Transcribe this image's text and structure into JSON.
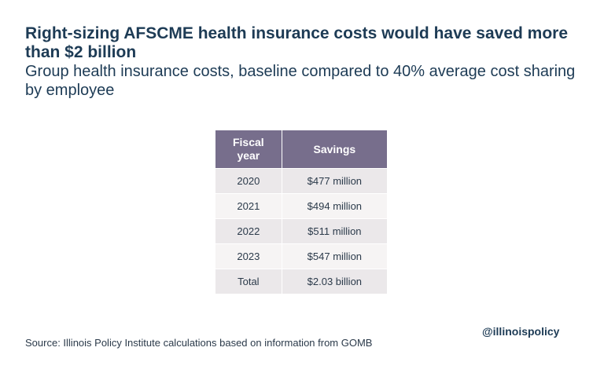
{
  "chart_data": {
    "type": "table",
    "title": "Right-sizing AFSCME health insurance costs would have saved more than $2 billion",
    "subtitle": "Group health insurance costs, baseline compared to 40% average cost sharing by employee",
    "columns": [
      "Fiscal year",
      "Savings"
    ],
    "rows": [
      {
        "year": "2020",
        "savings": "$477 million"
      },
      {
        "year": "2021",
        "savings": "$494 million"
      },
      {
        "year": "2022",
        "savings": "$511 million"
      },
      {
        "year": "2023",
        "savings": "$547 million"
      },
      {
        "year": "Total",
        "savings": "$2.03 billion"
      }
    ],
    "values_millions": [
      477,
      494,
      511,
      547,
      2030
    ]
  },
  "footer": {
    "source": "Source:  Illinois Policy Institute calculations based on information from GOMB",
    "handle": "@illinoispolicy"
  },
  "colors": {
    "header_bg": "#776e8c",
    "row_odd": "#ebe8ea",
    "row_even": "#f6f4f4",
    "title": "#1d3b55"
  }
}
